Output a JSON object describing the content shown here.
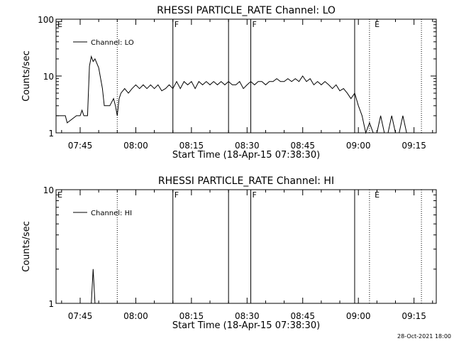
{
  "chart_data": [
    {
      "type": "line",
      "title": "RHESSI PARTICLE_RATE Channel: LO",
      "xlabel": "Start Time (18-Apr-15 07:38:30)",
      "ylabel": "Counts/sec",
      "yscale": "log",
      "ylim": [
        1,
        100
      ],
      "xlim": [
        "07:38:30",
        "09:21:00"
      ],
      "xtick_labels": [
        "07:45",
        "08:00",
        "08:15",
        "08:30",
        "08:45",
        "09:00",
        "09:15"
      ],
      "ytick_labels": [
        "1",
        "10",
        "100"
      ],
      "legend": {
        "placement": "top-left",
        "entries": [
          "Channel: LO"
        ]
      },
      "flags": [
        "E",
        "F",
        "F",
        "E"
      ],
      "flag_times": [
        "07:38:30",
        "08:10:00",
        "08:31:00",
        "09:04:00"
      ],
      "solid_lines_at": [
        "08:10:00",
        "08:25:00",
        "08:31:00",
        "08:59:00"
      ],
      "dotted_lines_at": [
        "07:55:00",
        "09:03:00",
        "09:17:00"
      ],
      "series": [
        {
          "name": "Channel: LO",
          "x": [
            "07:38:30",
            "07:41:00",
            "07:41:30",
            "07:44:00",
            "07:45:00",
            "07:45:30",
            "07:46:00",
            "07:47:00",
            "07:47:30",
            "07:48:00",
            "07:48:30",
            "07:49:00",
            "07:50:00",
            "07:51:00",
            "07:51:30",
            "07:52:00",
            "07:53:00",
            "07:54:00",
            "07:54:30",
            "07:55:00",
            "07:55:30",
            "07:56:00",
            "07:57:00",
            "07:58:00",
            "07:59:00",
            "08:00:00",
            "08:01:00",
            "08:02:00",
            "08:03:00",
            "08:04:00",
            "08:05:00",
            "08:06:00",
            "08:07:00",
            "08:08:00",
            "08:09:00",
            "08:10:00",
            "08:11:00",
            "08:12:00",
            "08:13:00",
            "08:14:00",
            "08:15:00",
            "08:16:00",
            "08:17:00",
            "08:18:00",
            "08:19:00",
            "08:20:00",
            "08:21:00",
            "08:22:00",
            "08:23:00",
            "08:24:00",
            "08:25:00",
            "08:26:00",
            "08:27:00",
            "08:28:00",
            "08:29:00",
            "08:30:00",
            "08:31:00",
            "08:32:00",
            "08:33:00",
            "08:34:00",
            "08:35:00",
            "08:36:00",
            "08:37:00",
            "08:38:00",
            "08:39:00",
            "08:40:00",
            "08:41:00",
            "08:42:00",
            "08:43:00",
            "08:44:00",
            "08:45:00",
            "08:46:00",
            "08:47:00",
            "08:48:00",
            "08:49:00",
            "08:50:00",
            "08:51:00",
            "08:52:00",
            "08:53:00",
            "08:54:00",
            "08:55:00",
            "08:56:00",
            "08:57:00",
            "08:58:00",
            "08:59:00",
            "09:00:00",
            "09:01:00",
            "09:02:00",
            "09:03:00",
            "09:04:00",
            "09:05:00",
            "09:06:00",
            "09:07:00",
            "09:08:00",
            "09:09:00",
            "09:10:00",
            "09:11:00",
            "09:12:00",
            "09:13:00",
            "09:14:00"
          ],
          "values": [
            2,
            2,
            1.5,
            2,
            2,
            2.5,
            2,
            2,
            15,
            22,
            18,
            20,
            14,
            6,
            3,
            3,
            3,
            4,
            3,
            2,
            4,
            5,
            6,
            5,
            6,
            7,
            6,
            7,
            6,
            7,
            6,
            7,
            5.5,
            6,
            7,
            6,
            8,
            6,
            8,
            7,
            8,
            6,
            8,
            7,
            8,
            7,
            8,
            7,
            8,
            7,
            8,
            7,
            7,
            8,
            6,
            7,
            8,
            7,
            8,
            8,
            7,
            8,
            8,
            9,
            8,
            8,
            9,
            8,
            9,
            8,
            10,
            8,
            9,
            7,
            8,
            7,
            8,
            7,
            6,
            7,
            5.5,
            6,
            5,
            4,
            5,
            3,
            2,
            1,
            1.5,
            1,
            1,
            2,
            1,
            1,
            2,
            1,
            1,
            2,
            1,
            1
          ]
        }
      ]
    },
    {
      "type": "line",
      "title": "RHESSI PARTICLE_RATE Channel: HI",
      "xlabel": "Start Time (18-Apr-15 07:38:30)",
      "ylabel": "Counts/sec",
      "yscale": "log",
      "ylim": [
        1,
        10
      ],
      "xlim": [
        "07:38:30",
        "09:21:00"
      ],
      "xtick_labels": [
        "07:45",
        "08:00",
        "08:15",
        "08:30",
        "08:45",
        "09:00",
        "09:15"
      ],
      "ytick_labels": [
        "1",
        "10"
      ],
      "legend": {
        "placement": "top-left",
        "entries": [
          "Channel: HI"
        ]
      },
      "flags": [
        "E",
        "F",
        "F",
        "E"
      ],
      "flag_times": [
        "07:38:30",
        "08:10:00",
        "08:31:00",
        "09:04:00"
      ],
      "solid_lines_at": [
        "08:10:00",
        "08:25:00",
        "08:31:00",
        "08:59:00"
      ],
      "dotted_lines_at": [
        "07:55:00",
        "09:03:00",
        "09:17:00"
      ],
      "series": [
        {
          "name": "Channel: HI",
          "x": [
            "07:48:00",
            "07:48:30",
            "07:49:00"
          ],
          "values": [
            1,
            2,
            1
          ]
        }
      ]
    }
  ],
  "footer": {
    "timestamp": "28-Oct-2021 18:00"
  }
}
